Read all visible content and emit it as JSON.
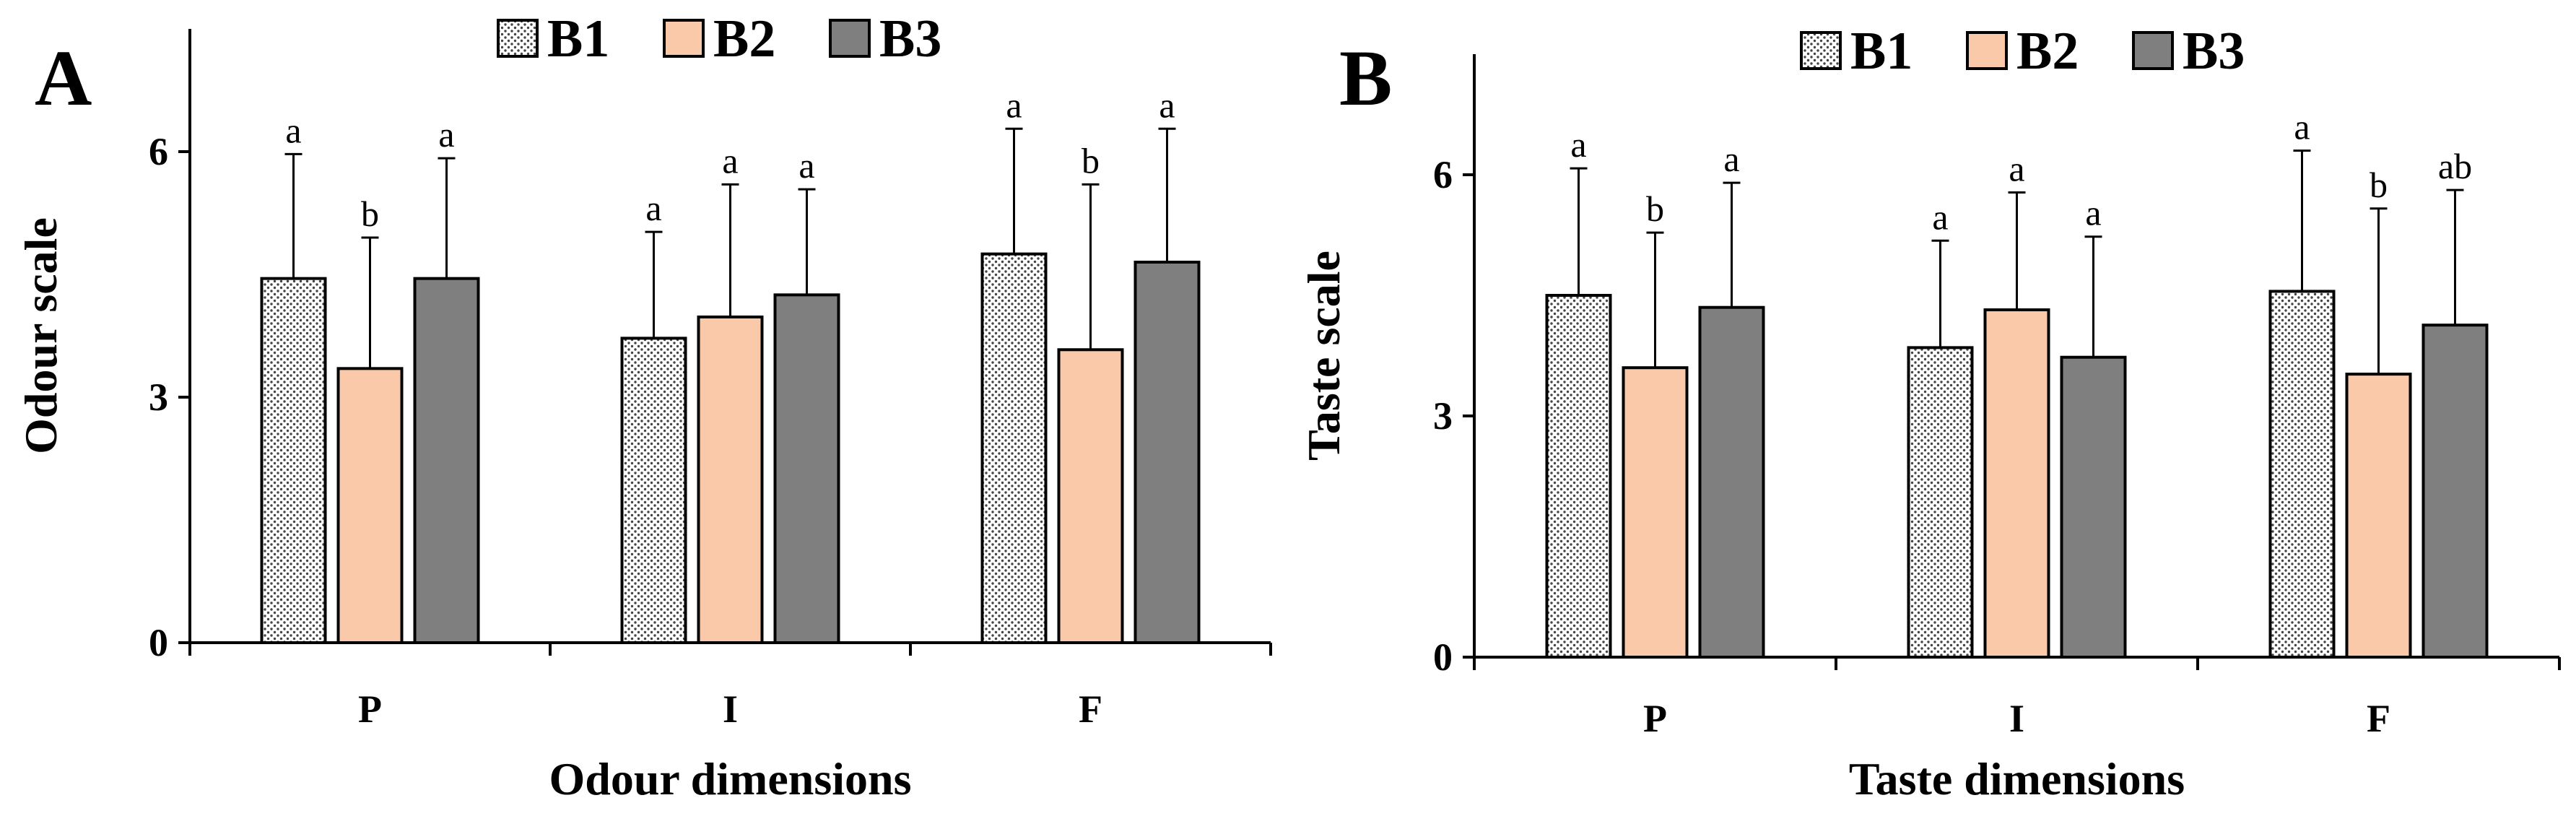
{
  "colors": {
    "B1_fill": "pattern-dots",
    "B2": "#f9c9a9",
    "B3": "#7f7f7f"
  },
  "chart_data": [
    {
      "type": "bar",
      "panel_label": "A",
      "xlabel": "Odour dimensions",
      "ylabel": "Odour scale",
      "categories": [
        "P",
        "I",
        "F"
      ],
      "ylim": [
        0,
        7.5
      ],
      "yticks": [
        0,
        3,
        6
      ],
      "ytick_labels": [
        "0",
        "3",
        "6"
      ],
      "legend": [
        "B1",
        "B2",
        "B3"
      ],
      "legend_position": "top",
      "series": [
        {
          "name": "B1",
          "values": [
            4.45,
            3.72,
            4.75
          ],
          "errors": [
            1.52,
            1.3,
            1.53
          ],
          "letters": [
            "a",
            "a",
            "a"
          ]
        },
        {
          "name": "B2",
          "values": [
            3.35,
            3.98,
            3.58
          ],
          "errors": [
            1.6,
            1.62,
            2.02
          ],
          "letters": [
            "b",
            "a",
            "b"
          ]
        },
        {
          "name": "B3",
          "values": [
            4.45,
            4.25,
            4.65
          ],
          "errors": [
            1.47,
            1.29,
            1.63
          ],
          "letters": [
            "a",
            "a",
            "a"
          ]
        }
      ]
    },
    {
      "type": "bar",
      "panel_label": "B",
      "xlabel": "Taste dimensions",
      "ylabel": "Taste scale",
      "categories": [
        "P",
        "I",
        "F"
      ],
      "ylim": [
        0,
        7.5
      ],
      "yticks": [
        0,
        3,
        6
      ],
      "ytick_labels": [
        "0",
        "3",
        "6"
      ],
      "legend": [
        "B1",
        "B2",
        "B3"
      ],
      "legend_position": "top",
      "series": [
        {
          "name": "B1",
          "values": [
            4.5,
            3.85,
            4.55
          ],
          "errors": [
            1.58,
            1.33,
            1.75
          ],
          "letters": [
            "a",
            "a",
            "a"
          ]
        },
        {
          "name": "B2",
          "values": [
            3.6,
            4.32,
            3.52
          ],
          "errors": [
            1.68,
            1.46,
            2.06
          ],
          "letters": [
            "b",
            "a",
            "b"
          ]
        },
        {
          "name": "B3",
          "values": [
            4.35,
            3.73,
            4.13
          ],
          "errors": [
            1.55,
            1.5,
            1.68
          ],
          "letters": [
            "a",
            "a",
            "ab"
          ]
        }
      ]
    }
  ]
}
